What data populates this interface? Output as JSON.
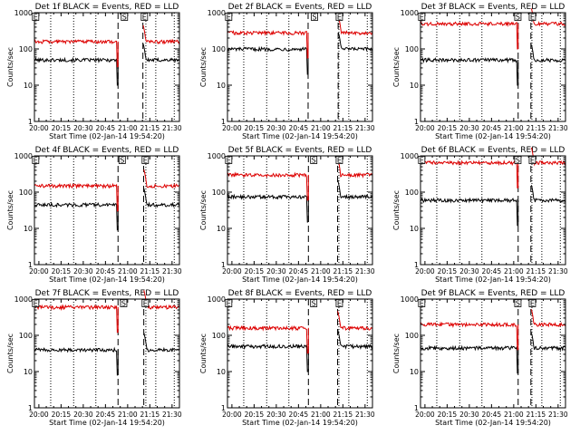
{
  "chart_data": {
    "type": "line",
    "yscale": "log",
    "ylim": [
      1,
      1000
    ],
    "xlim_minutes": [
      -3,
      95
    ],
    "ylabel": "Counts/sec",
    "xlabel": "Start Time (02-Jan-14 19:54:20)",
    "ytick_values": [
      1,
      10,
      100,
      1000
    ],
    "ytick_labels": [
      "1",
      "10",
      "100",
      "1000"
    ],
    "xtick_values": [
      0,
      15,
      30,
      45,
      60,
      75,
      90
    ],
    "xtick_labels": [
      "20:00",
      "20:15",
      "20:30",
      "20:45",
      "21:00",
      "21:15",
      "21:30"
    ],
    "series_colors": {
      "events": "#000000",
      "lld": "#dd0000"
    },
    "panels": [
      {
        "title": "Det 1f BLACK = Events, RED = LLD",
        "dotted_lines": [
          8,
          23.5,
          38.5,
          72.3,
          79,
          91.5
        ],
        "dashed_lines": [
          53.5,
          70.3
        ],
        "markers": [
          {
            "label": "E",
            "at": -2.5
          },
          {
            "label": "S",
            "at": 57.5
          },
          {
            "label": "E",
            "at": 71
          }
        ],
        "black": {
          "base": 50,
          "lv": [
            2,
            4,
            6,
            10,
            14,
            16,
            52,
            53
          ],
          "rv": [
            72,
            75,
            80,
            84,
            90,
            95
          ],
          "lt": 19,
          "rt": 44,
          "gap": [
            53.5,
            70.3
          ]
        },
        "red": {
          "base": 160,
          "lv": [
            2,
            4,
            6,
            10,
            14,
            16,
            52,
            53
          ],
          "rv": [
            72,
            75,
            80,
            84,
            90,
            95
          ],
          "lt": 19,
          "rt": 44,
          "gap": [
            53.5,
            70.3
          ]
        }
      },
      {
        "title": "Det 2f BLACK = Events, RED = LLD",
        "dotted_lines": [
          8,
          23.5,
          38.5,
          72.3,
          79,
          91.5
        ],
        "dashed_lines": [
          51.5,
          71.8
        ],
        "markers": [
          {
            "label": "E",
            "at": -2.5
          },
          {
            "label": "S",
            "at": 55.5
          },
          {
            "label": "E",
            "at": 72.3
          }
        ],
        "black": {
          "base": 100,
          "lv": [
            2,
            4,
            6,
            10,
            14,
            16,
            52,
            53
          ],
          "rv": [
            72,
            75,
            80,
            84,
            90,
            95
          ],
          "lt": 19,
          "rt": 44,
          "gap": [
            51.5,
            71.8
          ]
        },
        "red": {
          "base": 280,
          "lv": [
            2,
            4,
            6,
            10,
            14,
            16,
            52,
            53
          ],
          "rv": [
            72,
            75,
            80,
            84,
            90,
            95
          ],
          "lt": 19,
          "rt": 44,
          "gap": [
            51.5,
            71.8
          ]
        }
      },
      {
        "title": "Det 3f BLACK = Events, RED = LLD",
        "dotted_lines": [
          8,
          23.5,
          38.5,
          72.3,
          79,
          91.5
        ],
        "dashed_lines": [
          63,
          71.6
        ],
        "markers": [
          {
            "label": "E",
            "at": -2.5
          },
          {
            "label": "S",
            "at": 62.5
          },
          {
            "label": "E",
            "at": 72.3
          }
        ],
        "black": {
          "base": 50,
          "lv": [
            2,
            4,
            6,
            10,
            14,
            16,
            52,
            53
          ],
          "rv": [
            72,
            75,
            80,
            84,
            90,
            95
          ],
          "lt": 19,
          "rt": 44,
          "gap": [
            63,
            71.6
          ]
        },
        "red": {
          "base": 500,
          "lv": [
            2,
            4,
            6,
            10,
            14,
            16,
            52,
            53
          ],
          "rv": [
            72,
            75,
            80,
            84,
            90,
            95
          ],
          "lt": 19,
          "rt": 44,
          "gap": [
            63,
            71.6
          ]
        }
      },
      {
        "title": "Det 4f BLACK = Events, RED = LLD",
        "dotted_lines": [
          8,
          23.5,
          38.5,
          72.3,
          79,
          91.5
        ],
        "dashed_lines": [
          53.5,
          70.8
        ],
        "markers": [
          {
            "label": "E",
            "at": -2.5
          },
          {
            "label": "S",
            "at": 56
          },
          {
            "label": "E",
            "at": 71.6
          }
        ],
        "black": {
          "base": 45,
          "lv": [
            2,
            4,
            6,
            10,
            14,
            16,
            52,
            53
          ],
          "rv": [
            72,
            75,
            80,
            84,
            90,
            95
          ],
          "lt": 19,
          "rt": 44,
          "gap": [
            53.5,
            70.8
          ]
        },
        "red": {
          "base": 150,
          "lv": [
            2,
            4,
            6,
            10,
            14,
            16,
            52,
            53
          ],
          "rv": [
            72,
            75,
            80,
            84,
            90,
            95
          ],
          "lt": 19,
          "rt": 44,
          "gap": [
            53.5,
            70.8
          ]
        }
      },
      {
        "title": "Det 5f BLACK = Events, RED = LLD",
        "dotted_lines": [
          8,
          23.5,
          38.5,
          72.3,
          79,
          91.5
        ],
        "dashed_lines": [
          51.7,
          71.4
        ],
        "markers": [
          {
            "label": "E",
            "at": -2.5
          },
          {
            "label": "S",
            "at": 55
          },
          {
            "label": "E",
            "at": 72.3
          }
        ],
        "black": {
          "base": 75,
          "lv": [
            2,
            4,
            6,
            10,
            14,
            16,
            52,
            53
          ],
          "rv": [
            72,
            75,
            80,
            84,
            90,
            95
          ],
          "lt": 19,
          "rt": 44,
          "gap": [
            51.7,
            71.4
          ]
        },
        "red": {
          "base": 300,
          "lv": [
            2,
            4,
            6,
            10,
            14,
            16,
            52,
            53
          ],
          "rv": [
            72,
            75,
            80,
            84,
            90,
            95
          ],
          "lt": 19,
          "rt": 44,
          "gap": [
            51.7,
            71.4
          ]
        }
      },
      {
        "title": "Det 6f BLACK = Events, RED = LLD",
        "dotted_lines": [
          8,
          23.5,
          38.5,
          72.3,
          79,
          91.5
        ],
        "dashed_lines": [
          63,
          71.6
        ],
        "markers": [
          {
            "label": "E",
            "at": -2.5
          },
          {
            "label": "S",
            "at": 62.5
          },
          {
            "label": "E",
            "at": 72.3
          }
        ],
        "black": {
          "base": 60,
          "lv": [
            2,
            4,
            6,
            10,
            14,
            16,
            52,
            53
          ],
          "rv": [
            72,
            75,
            80,
            84,
            90,
            95
          ],
          "lt": 19,
          "rt": 44,
          "gap": [
            63,
            71.6
          ]
        },
        "red": {
          "base": 650,
          "lv": [
            2,
            4,
            6,
            10,
            14,
            16,
            52,
            53
          ],
          "rv": [
            72,
            75,
            80,
            84,
            90,
            95
          ],
          "lt": 19,
          "rt": 44,
          "gap": [
            63,
            71.6
          ]
        }
      },
      {
        "title": "Det 7f BLACK = Events, RED = LLD",
        "dotted_lines": [
          8,
          23.5,
          38.5,
          72.3,
          79,
          91.5
        ],
        "dashed_lines": [
          53.5,
          70.9
        ],
        "markers": [
          {
            "label": "E",
            "at": -2.5
          },
          {
            "label": "S",
            "at": 57
          },
          {
            "label": "E",
            "at": 71.6
          }
        ],
        "black": {
          "base": 40,
          "lv": [
            2,
            4,
            6,
            10,
            14,
            16,
            52,
            53
          ],
          "rv": [
            72,
            75,
            80,
            84,
            90,
            95
          ],
          "lt": 19,
          "rt": 44,
          "gap": [
            53.5,
            70.9
          ]
        },
        "red": {
          "base": 600,
          "lv": [
            2,
            4,
            6,
            10,
            14,
            16,
            52,
            53
          ],
          "rv": [
            72,
            75,
            80,
            84,
            90,
            95
          ],
          "lt": 19,
          "rt": 44,
          "gap": [
            53.5,
            70.9
          ]
        }
      },
      {
        "title": "Det 8f BLACK = Events, RED = LLD",
        "dotted_lines": [
          8,
          23.5,
          38.5,
          72.3,
          79,
          91.5
        ],
        "dashed_lines": [
          51.7,
          71.4
        ],
        "markers": [
          {
            "label": "E",
            "at": -2.5
          },
          {
            "label": "S",
            "at": 55
          },
          {
            "label": "E",
            "at": 72.3
          }
        ],
        "black": {
          "base": 50,
          "lv": [
            2,
            4,
            6,
            10,
            14,
            16,
            52,
            53
          ],
          "rv": [
            72,
            75,
            80,
            84,
            90,
            95
          ],
          "lt": 19,
          "rt": 44,
          "gap": [
            51.7,
            71.4
          ]
        },
        "red": {
          "base": 160,
          "lv": [
            2,
            4,
            6,
            10,
            14,
            16,
            52,
            53
          ],
          "rv": [
            72,
            75,
            80,
            84,
            90,
            95
          ],
          "lt": 19,
          "rt": 44,
          "gap": [
            51.7,
            71.4
          ]
        }
      },
      {
        "title": "Det 9f BLACK = Events, RED = LLD",
        "dotted_lines": [
          8,
          23.5,
          38.5,
          72.3,
          79,
          91.5
        ],
        "dashed_lines": [
          63,
          71.6
        ],
        "markers": [
          {
            "label": "E",
            "at": -2.5
          },
          {
            "label": "S",
            "at": 62.5
          },
          {
            "label": "E",
            "at": 72.3
          }
        ],
        "black": {
          "base": 45,
          "lv": [
            2,
            4,
            6,
            10,
            14,
            16,
            52,
            53
          ],
          "rv": [
            72,
            75,
            80,
            84,
            90,
            95
          ],
          "lt": 19,
          "rt": 44,
          "gap": [
            63,
            71.6
          ]
        },
        "red": {
          "base": 200,
          "lv": [
            2,
            4,
            6,
            10,
            14,
            16,
            52,
            53
          ],
          "rv": [
            72,
            75,
            80,
            84,
            90,
            95
          ],
          "lt": 19,
          "rt": 44,
          "gap": [
            63,
            71.6
          ]
        }
      }
    ]
  }
}
